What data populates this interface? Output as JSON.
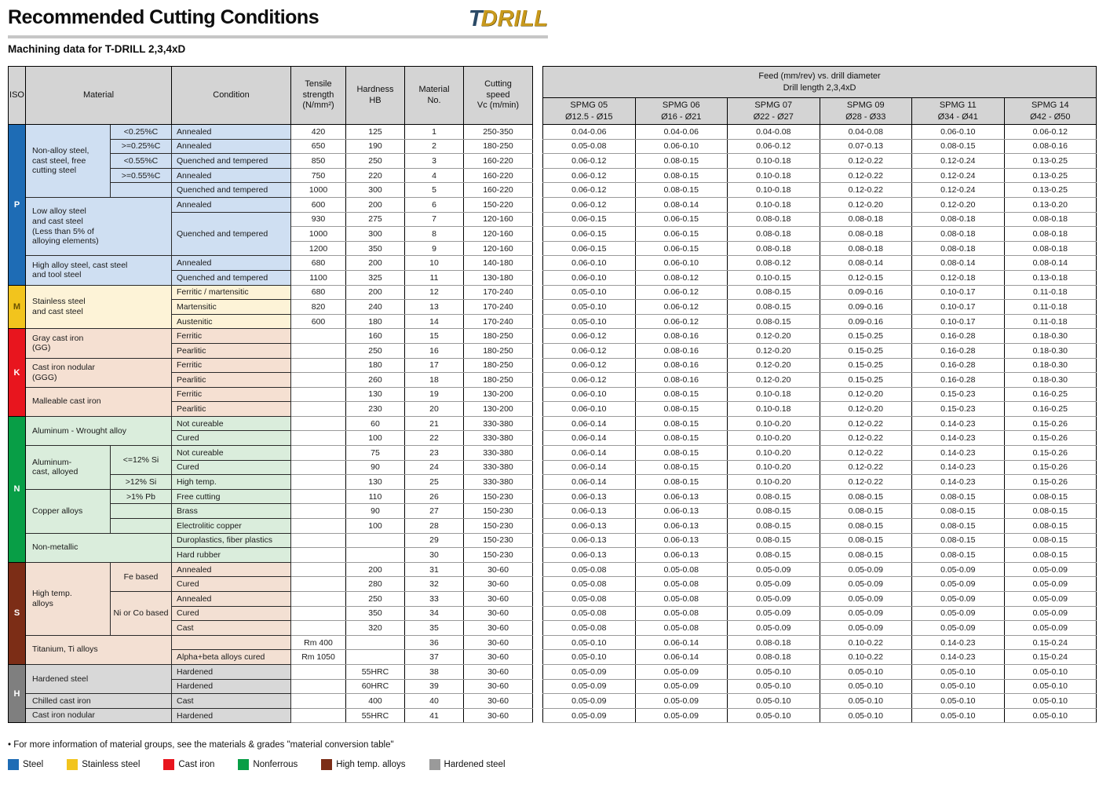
{
  "header": {
    "title": "Recommended Cutting Conditions",
    "logo_t": "T",
    "logo_rest": "DRILL",
    "subtitle": "Machining data for T-DRILL 2,3,4xD"
  },
  "left_table": {
    "columns": [
      "ISO",
      "Material",
      "Condition",
      "Tensile\nstrength\n(N/mm²)",
      "Hardness\nHB",
      "Material\nNo.",
      "Cutting\nspeed\nVc (m/min)"
    ]
  },
  "right_table": {
    "title": "Feed (mm/rev) vs. drill diameter\nDrill length 2,3,4xD",
    "columns": [
      {
        "name": "SPMG 05",
        "range": "Ø12.5 - Ø15"
      },
      {
        "name": "SPMG 06",
        "range": "Ø16 - Ø21"
      },
      {
        "name": "SPMG 07",
        "range": "Ø22 - Ø27"
      },
      {
        "name": "SPMG 09",
        "range": "Ø28 - Ø33"
      },
      {
        "name": "SPMG 11",
        "range": "Ø34 - Ø41"
      },
      {
        "name": "SPMG 14",
        "range": "Ø42 - Ø50"
      }
    ]
  },
  "groups": [
    {
      "letter": "P",
      "color": "#1e6cb5",
      "letter_color": "#ffffff",
      "tint": "#cfdff2",
      "rows": 11
    },
    {
      "letter": "M",
      "color": "#f2c41d",
      "letter_color": "#6b5200",
      "tint": "#fdf3d7",
      "rows": 3
    },
    {
      "letter": "K",
      "color": "#e8151e",
      "letter_color": "#ffffff",
      "tint": "#f5e0d2",
      "rows": 6
    },
    {
      "letter": "N",
      "color": "#089e46",
      "letter_color": "#ffffff",
      "tint": "#daeddc",
      "rows": 10
    },
    {
      "letter": "S",
      "color": "#7c2d16",
      "letter_color": "#ffffff",
      "tint": "#f3e0d3",
      "rows": 7
    },
    {
      "letter": "H",
      "color": "#7f7f7f",
      "letter_color": "#ffffff",
      "tint": "#d8d8d8",
      "rows": 4
    }
  ],
  "rows": [
    {
      "mat": {
        "text": "Non-alloy steel,\ncast steel, free\ncutting steel",
        "span": 5
      },
      "spec": {
        "text": "<0.25%C"
      },
      "cond": {
        "text": "Annealed"
      },
      "cells": [
        "420",
        "125",
        "1",
        "250-350"
      ],
      "feeds": [
        "0.04-0.06",
        "0.04-0.06",
        "0.04-0.08",
        "0.04-0.08",
        "0.06-0.10",
        "0.06-0.12"
      ]
    },
    {
      "spec": {
        "text": ">=0.25%C"
      },
      "cond": {
        "text": "Annealed"
      },
      "cells": [
        "650",
        "190",
        "2",
        "180-250"
      ],
      "feeds": [
        "0.05-0.08",
        "0.06-0.10",
        "0.06-0.12",
        "0.07-0.13",
        "0.08-0.15",
        "0.08-0.16"
      ]
    },
    {
      "spec": {
        "text": "<0.55%C"
      },
      "cond": {
        "text": "Quenched and tempered"
      },
      "cells": [
        "850",
        "250",
        "3",
        "160-220"
      ],
      "feeds": [
        "0.06-0.12",
        "0.08-0.15",
        "0.10-0.18",
        "0.12-0.22",
        "0.12-0.24",
        "0.13-0.25"
      ]
    },
    {
      "spec": {
        "text": ">=0.55%C"
      },
      "cond": {
        "text": "Annealed"
      },
      "cells": [
        "750",
        "220",
        "4",
        "160-220"
      ],
      "feeds": [
        "0.06-0.12",
        "0.08-0.15",
        "0.10-0.18",
        "0.12-0.22",
        "0.12-0.24",
        "0.13-0.25"
      ]
    },
    {
      "spec": {
        "text": ""
      },
      "cond": {
        "text": "Quenched and tempered"
      },
      "cells": [
        "1000",
        "300",
        "5",
        "160-220"
      ],
      "feeds": [
        "0.06-0.12",
        "0.08-0.15",
        "0.10-0.18",
        "0.12-0.22",
        "0.12-0.24",
        "0.13-0.25"
      ]
    },
    {
      "mat": {
        "text": "Low alloy steel\nand cast steel\n(Less than 5% of\nalloying elements)",
        "span": 4,
        "colspan": 2
      },
      "cond": {
        "text": "Annealed"
      },
      "cells": [
        "600",
        "200",
        "6",
        "150-220"
      ],
      "feeds": [
        "0.06-0.12",
        "0.08-0.14",
        "0.10-0.18",
        "0.12-0.20",
        "0.12-0.20",
        "0.13-0.20"
      ]
    },
    {
      "cond": {
        "text": "Quenched and tempered",
        "span": 3
      },
      "cells": [
        "930",
        "275",
        "7",
        "120-160"
      ],
      "feeds": [
        "0.06-0.15",
        "0.06-0.15",
        "0.08-0.18",
        "0.08-0.18",
        "0.08-0.18",
        "0.08-0.18"
      ]
    },
    {
      "cells": [
        "1000",
        "300",
        "8",
        "120-160"
      ],
      "feeds": [
        "0.06-0.15",
        "0.06-0.15",
        "0.08-0.18",
        "0.08-0.18",
        "0.08-0.18",
        "0.08-0.18"
      ]
    },
    {
      "cells": [
        "1200",
        "350",
        "9",
        "120-160"
      ],
      "feeds": [
        "0.06-0.15",
        "0.06-0.15",
        "0.08-0.18",
        "0.08-0.18",
        "0.08-0.18",
        "0.08-0.18"
      ]
    },
    {
      "mat": {
        "text": "High alloy steel, cast steel\nand tool steel",
        "span": 2,
        "colspan": 2
      },
      "cond": {
        "text": "Annealed"
      },
      "cells": [
        "680",
        "200",
        "10",
        "140-180"
      ],
      "feeds": [
        "0.06-0.10",
        "0.06-0.10",
        "0.08-0.12",
        "0.08-0.14",
        "0.08-0.14",
        "0.08-0.14"
      ]
    },
    {
      "cond": {
        "text": "Quenched and tempered"
      },
      "cells": [
        "1100",
        "325",
        "11",
        "130-180"
      ],
      "feeds": [
        "0.06-0.10",
        "0.08-0.12",
        "0.10-0.15",
        "0.12-0.15",
        "0.12-0.18",
        "0.13-0.18"
      ]
    },
    {
      "mat": {
        "text": "Stainless steel\nand cast steel",
        "span": 3,
        "colspan": 2
      },
      "cond": {
        "text": "Ferritic / martensitic"
      },
      "cells": [
        "680",
        "200",
        "12",
        "170-240"
      ],
      "feeds": [
        "0.05-0.10",
        "0.06-0.12",
        "0.08-0.15",
        "0.09-0.16",
        "0.10-0.17",
        "0.11-0.18"
      ]
    },
    {
      "cond": {
        "text": "Martensitic"
      },
      "cells": [
        "820",
        "240",
        "13",
        "170-240"
      ],
      "feeds": [
        "0.05-0.10",
        "0.06-0.12",
        "0.08-0.15",
        "0.09-0.16",
        "0.10-0.17",
        "0.11-0.18"
      ]
    },
    {
      "cond": {
        "text": "Austenitic"
      },
      "cells": [
        "600",
        "180",
        "14",
        "170-240"
      ],
      "feeds": [
        "0.05-0.10",
        "0.06-0.12",
        "0.08-0.15",
        "0.09-0.16",
        "0.10-0.17",
        "0.11-0.18"
      ]
    },
    {
      "mat": {
        "text": "Gray cast iron\n(GG)",
        "span": 2,
        "colspan": 2
      },
      "cond": {
        "text": "Ferritic"
      },
      "cells": [
        "",
        "160",
        "15",
        "180-250"
      ],
      "feeds": [
        "0.06-0.12",
        "0.08-0.16",
        "0.12-0.20",
        "0.15-0.25",
        "0.16-0.28",
        "0.18-0.30"
      ]
    },
    {
      "cond": {
        "text": "Pearlitic"
      },
      "cells": [
        "",
        "250",
        "16",
        "180-250"
      ],
      "feeds": [
        "0.06-0.12",
        "0.08-0.16",
        "0.12-0.20",
        "0.15-0.25",
        "0.16-0.28",
        "0.18-0.30"
      ]
    },
    {
      "mat": {
        "text": "Cast iron nodular\n(GGG)",
        "span": 2,
        "colspan": 2
      },
      "cond": {
        "text": "Ferritic"
      },
      "cells": [
        "",
        "180",
        "17",
        "180-250"
      ],
      "feeds": [
        "0.06-0.12",
        "0.08-0.16",
        "0.12-0.20",
        "0.15-0.25",
        "0.16-0.28",
        "0.18-0.30"
      ]
    },
    {
      "cond": {
        "text": "Pearlitic"
      },
      "cells": [
        "",
        "260",
        "18",
        "180-250"
      ],
      "feeds": [
        "0.06-0.12",
        "0.08-0.16",
        "0.12-0.20",
        "0.15-0.25",
        "0.16-0.28",
        "0.18-0.30"
      ]
    },
    {
      "mat": {
        "text": "Malleable cast iron",
        "span": 2,
        "colspan": 2
      },
      "cond": {
        "text": "Ferritic"
      },
      "cells": [
        "",
        "130",
        "19",
        "130-200"
      ],
      "feeds": [
        "0.06-0.10",
        "0.08-0.15",
        "0.10-0.18",
        "0.12-0.20",
        "0.15-0.23",
        "0.16-0.25"
      ]
    },
    {
      "cond": {
        "text": "Pearlitic"
      },
      "cells": [
        "",
        "230",
        "20",
        "130-200"
      ],
      "feeds": [
        "0.06-0.10",
        "0.08-0.15",
        "0.10-0.18",
        "0.12-0.20",
        "0.15-0.23",
        "0.16-0.25"
      ]
    },
    {
      "mat": {
        "text": "Aluminum - Wrought alloy",
        "span": 2,
        "colspan": 2
      },
      "cond": {
        "text": "Not cureable"
      },
      "cells": [
        "",
        "60",
        "21",
        "330-380"
      ],
      "feeds": [
        "0.06-0.14",
        "0.08-0.15",
        "0.10-0.20",
        "0.12-0.22",
        "0.14-0.23",
        "0.15-0.26"
      ]
    },
    {
      "cond": {
        "text": "Cured"
      },
      "cells": [
        "",
        "100",
        "22",
        "330-380"
      ],
      "feeds": [
        "0.06-0.14",
        "0.08-0.15",
        "0.10-0.20",
        "0.12-0.22",
        "0.14-0.23",
        "0.15-0.26"
      ]
    },
    {
      "mat": {
        "text": "Aluminum-\ncast, alloyed",
        "span": 3
      },
      "spec": {
        "text": "<=12% Si",
        "span": 2
      },
      "cond": {
        "text": "Not cureable"
      },
      "cells": [
        "",
        "75",
        "23",
        "330-380"
      ],
      "feeds": [
        "0.06-0.14",
        "0.08-0.15",
        "0.10-0.20",
        "0.12-0.22",
        "0.14-0.23",
        "0.15-0.26"
      ]
    },
    {
      "cond": {
        "text": "Cured"
      },
      "cells": [
        "",
        "90",
        "24",
        "330-380"
      ],
      "feeds": [
        "0.06-0.14",
        "0.08-0.15",
        "0.10-0.20",
        "0.12-0.22",
        "0.14-0.23",
        "0.15-0.26"
      ]
    },
    {
      "spec": {
        "text": ">12% Si"
      },
      "cond": {
        "text": "High temp."
      },
      "cells": [
        "",
        "130",
        "25",
        "330-380"
      ],
      "feeds": [
        "0.06-0.14",
        "0.08-0.15",
        "0.10-0.20",
        "0.12-0.22",
        "0.14-0.23",
        "0.15-0.26"
      ]
    },
    {
      "mat": {
        "text": "Copper alloys",
        "span": 3
      },
      "spec": {
        "text": ">1% Pb"
      },
      "cond": {
        "text": "Free cutting"
      },
      "cells": [
        "",
        "110",
        "26",
        "150-230"
      ],
      "feeds": [
        "0.06-0.13",
        "0.06-0.13",
        "0.08-0.15",
        "0.08-0.15",
        "0.08-0.15",
        "0.08-0.15"
      ]
    },
    {
      "spec": {
        "text": ""
      },
      "cond": {
        "text": "Brass"
      },
      "cells": [
        "",
        "90",
        "27",
        "150-230"
      ],
      "feeds": [
        "0.06-0.13",
        "0.06-0.13",
        "0.08-0.15",
        "0.08-0.15",
        "0.08-0.15",
        "0.08-0.15"
      ]
    },
    {
      "spec": {
        "text": ""
      },
      "cond": {
        "text": "Electrolitic copper"
      },
      "cells": [
        "",
        "100",
        "28",
        "150-230"
      ],
      "feeds": [
        "0.06-0.13",
        "0.06-0.13",
        "0.08-0.15",
        "0.08-0.15",
        "0.08-0.15",
        "0.08-0.15"
      ]
    },
    {
      "mat": {
        "text": "Non-metallic",
        "span": 2,
        "colspan": 2
      },
      "cond": {
        "text": "Duroplastics, fiber plastics"
      },
      "cells": [
        "",
        "",
        "29",
        "150-230"
      ],
      "feeds": [
        "0.06-0.13",
        "0.06-0.13",
        "0.08-0.15",
        "0.08-0.15",
        "0.08-0.15",
        "0.08-0.15"
      ]
    },
    {
      "cond": {
        "text": "Hard rubber"
      },
      "cells": [
        "",
        "",
        "30",
        "150-230"
      ],
      "feeds": [
        "0.06-0.13",
        "0.06-0.13",
        "0.08-0.15",
        "0.08-0.15",
        "0.08-0.15",
        "0.08-0.15"
      ]
    },
    {
      "mat": {
        "text": "High temp.\nalloys",
        "span": 5
      },
      "spec": {
        "text": "Fe based",
        "span": 2
      },
      "cond": {
        "text": "Annealed"
      },
      "cells": [
        "",
        "200",
        "31",
        "30-60"
      ],
      "feeds": [
        "0.05-0.08",
        "0.05-0.08",
        "0.05-0.09",
        "0.05-0.09",
        "0.05-0.09",
        "0.05-0.09"
      ]
    },
    {
      "cond": {
        "text": "Cured"
      },
      "cells": [
        "",
        "280",
        "32",
        "30-60"
      ],
      "feeds": [
        "0.05-0.08",
        "0.05-0.08",
        "0.05-0.09",
        "0.05-0.09",
        "0.05-0.09",
        "0.05-0.09"
      ]
    },
    {
      "spec": {
        "text": "Ni or\nCo based",
        "span": 3
      },
      "cond": {
        "text": "Annealed"
      },
      "cells": [
        "",
        "250",
        "33",
        "30-60"
      ],
      "feeds": [
        "0.05-0.08",
        "0.05-0.08",
        "0.05-0.09",
        "0.05-0.09",
        "0.05-0.09",
        "0.05-0.09"
      ]
    },
    {
      "cond": {
        "text": "Cured"
      },
      "cells": [
        "",
        "350",
        "34",
        "30-60"
      ],
      "feeds": [
        "0.05-0.08",
        "0.05-0.08",
        "0.05-0.09",
        "0.05-0.09",
        "0.05-0.09",
        "0.05-0.09"
      ]
    },
    {
      "cond": {
        "text": "Cast"
      },
      "cells": [
        "",
        "320",
        "35",
        "30-60"
      ],
      "feeds": [
        "0.05-0.08",
        "0.05-0.08",
        "0.05-0.09",
        "0.05-0.09",
        "0.05-0.09",
        "0.05-0.09"
      ]
    },
    {
      "mat": {
        "text": "Titanium, Ti alloys",
        "span": 2,
        "colspan": 2
      },
      "cond": {
        "text": ""
      },
      "cells": [
        "Rm 400",
        "",
        "36",
        "30-60"
      ],
      "feeds": [
        "0.05-0.10",
        "0.06-0.14",
        "0.08-0.18",
        "0.10-0.22",
        "0.14-0.23",
        "0.15-0.24"
      ]
    },
    {
      "cond": {
        "text": "Alpha+beta alloys cured"
      },
      "cells": [
        "Rm 1050",
        "",
        "37",
        "30-60"
      ],
      "feeds": [
        "0.05-0.10",
        "0.06-0.14",
        "0.08-0.18",
        "0.10-0.22",
        "0.14-0.23",
        "0.15-0.24"
      ]
    },
    {
      "mat": {
        "text": "Hardened steel",
        "span": 2,
        "colspan": 2
      },
      "cond": {
        "text": "Hardened"
      },
      "cells": [
        "",
        "55HRC",
        "38",
        "30-60"
      ],
      "feeds": [
        "0.05-0.09",
        "0.05-0.09",
        "0.05-0.10",
        "0.05-0.10",
        "0.05-0.10",
        "0.05-0.10"
      ]
    },
    {
      "cond": {
        "text": "Hardened"
      },
      "cells": [
        "",
        "60HRC",
        "39",
        "30-60"
      ],
      "feeds": [
        "0.05-0.09",
        "0.05-0.09",
        "0.05-0.10",
        "0.05-0.10",
        "0.05-0.10",
        "0.05-0.10"
      ]
    },
    {
      "mat": {
        "text": "Chilled cast iron",
        "span": 1,
        "colspan": 2
      },
      "cond": {
        "text": "Cast"
      },
      "cells": [
        "",
        "400",
        "40",
        "30-60"
      ],
      "feeds": [
        "0.05-0.09",
        "0.05-0.09",
        "0.05-0.10",
        "0.05-0.10",
        "0.05-0.10",
        "0.05-0.10"
      ]
    },
    {
      "mat": {
        "text": "Cast iron nodular",
        "span": 1,
        "colspan": 2
      },
      "cond": {
        "text": "Hardened"
      },
      "cells": [
        "",
        "55HRC",
        "41",
        "30-60"
      ],
      "feeds": [
        "0.05-0.09",
        "0.05-0.09",
        "0.05-0.10",
        "0.05-0.10",
        "0.05-0.10",
        "0.05-0.10"
      ]
    }
  ],
  "footer": {
    "note": "• For more information of material groups, see the materials & grades \"material conversion table\"",
    "legend": [
      {
        "label": "Steel",
        "color": "#1e6cb5"
      },
      {
        "label": "Stainless steel",
        "color": "#f2c41d"
      },
      {
        "label": "Cast iron",
        "color": "#e8151e"
      },
      {
        "label": "Nonferrous",
        "color": "#089e46"
      },
      {
        "label": "High temp. alloys",
        "color": "#7c2d16"
      },
      {
        "label": "Hardened steel",
        "color": "#9a9a9a"
      }
    ]
  }
}
